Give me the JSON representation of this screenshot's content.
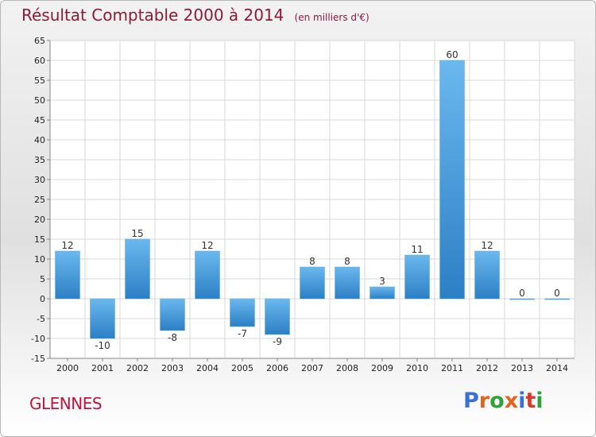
{
  "chart_data": {
    "type": "bar",
    "title": "Résultat Comptable 2000 à 2014",
    "subtitle": "(en milliers d'€)",
    "categories": [
      "2000",
      "2001",
      "2002",
      "2003",
      "2004",
      "2005",
      "2006",
      "2007",
      "2008",
      "2009",
      "2010",
      "2011",
      "2012",
      "2013",
      "2014"
    ],
    "values": [
      12,
      -10,
      15,
      -8,
      12,
      -7,
      -9,
      8,
      8,
      3,
      11,
      60,
      12,
      0,
      0
    ],
    "value_labels": [
      "12",
      "-10",
      "15",
      "-8",
      "12",
      "-7",
      "-9",
      "8",
      "8",
      "3",
      "11",
      "60",
      "12",
      "0",
      "0"
    ],
    "ylim": [
      -15,
      65
    ],
    "yticks": [
      -15,
      -10,
      -5,
      0,
      5,
      10,
      15,
      20,
      25,
      30,
      35,
      40,
      45,
      50,
      55,
      60,
      65
    ],
    "grid": true,
    "xlabel": "",
    "ylabel": ""
  },
  "commune": "GLENNES",
  "logo": {
    "letters": [
      "P",
      "r",
      "o",
      "x",
      "i",
      "t",
      "i"
    ],
    "colors": [
      "#3a6fd8",
      "#e0651b",
      "#2fa33a",
      "#e0651b",
      "#3a6fd8",
      "#d63a2e",
      "#2fa33a"
    ]
  },
  "colors": {
    "bar_light": "#6bb8ef",
    "bar_dark": "#2b7fc4",
    "title": "#8b1a3b"
  }
}
